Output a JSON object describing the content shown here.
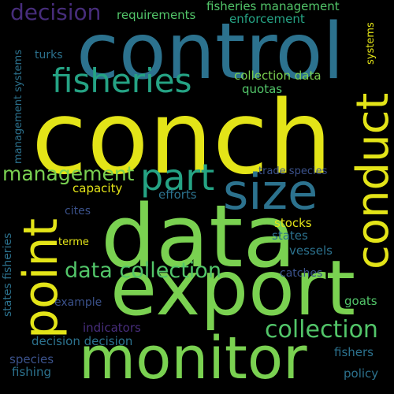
{
  "words": {
    "conch": "conch",
    "control": "control",
    "data": "data",
    "export": "export",
    "monitor": "monitor",
    "size": "size",
    "conduct": "conduct",
    "point": "point",
    "fisheries": "fisheries",
    "part": "part",
    "management": "management",
    "data_collection": "data collection",
    "collection": "collection",
    "decision": "decision",
    "requirements": "requirements",
    "fisheries_management": "fisheries management",
    "enforcement": "enforcement",
    "turks": "turks",
    "collection_data": "collection data",
    "quotas": "quotas",
    "trade_species": "trade species",
    "capacity": "capacity",
    "efforts": "efforts",
    "cites": "cites",
    "stocks": "stocks",
    "states": "states",
    "terme": "terme",
    "vessels": "vessels",
    "catches": "catches",
    "example": "example",
    "goats": "goats",
    "indicators": "indicators",
    "decision_decision": "decision decision",
    "fishers": "fishers",
    "species": "species",
    "fishing": "fishing",
    "policy": "policy",
    "management_systems": "management systems",
    "states_fisheries": "states fisheries",
    "systems": "systems"
  },
  "colors": {
    "yellow": "#e3e418",
    "lime": "#7ad151",
    "green": "#52c569",
    "teal": "#25a384",
    "blue": "#2c728e",
    "indigo": "#3b528b",
    "purple": "#472d7b",
    "background": "#000000"
  }
}
